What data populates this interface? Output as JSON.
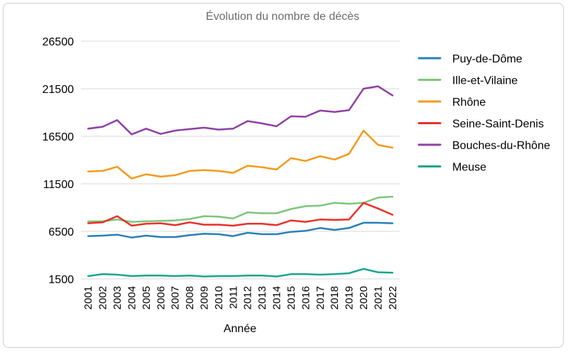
{
  "chart_data": {
    "type": "line",
    "title": "Évolution du nombre de décès",
    "xlabel": "Année",
    "ylabel": "",
    "ylim": [
      1500,
      26500
    ],
    "yticks": [
      "1500",
      "6500",
      "11500",
      "16500",
      "21500",
      "26500"
    ],
    "ytick_values": [
      1500,
      6500,
      11500,
      16500,
      21500,
      26500
    ],
    "grid": "horizontal",
    "legend_position": "right",
    "x": [
      "2001",
      "2002",
      "2003",
      "2004",
      "2005",
      "2006",
      "2007",
      "2008",
      "2009",
      "2010",
      "2011",
      "2012",
      "2013",
      "2014",
      "2015",
      "2016",
      "2017",
      "2018",
      "2019",
      "2020",
      "2021",
      "2022"
    ],
    "series": [
      {
        "name": "Puy-de-Dôme",
        "color": "#2a7fb8",
        "values": [
          6000,
          6050,
          6150,
          5850,
          6050,
          5900,
          5900,
          6100,
          6250,
          6200,
          6000,
          6350,
          6200,
          6200,
          6450,
          6550,
          6850,
          6650,
          6850,
          7400,
          7400,
          7350
        ]
      },
      {
        "name": "Ille-et-Vilaine",
        "color": "#7dc67a",
        "values": [
          7550,
          7550,
          7750,
          7500,
          7550,
          7600,
          7650,
          7800,
          8100,
          8050,
          7850,
          8500,
          8400,
          8400,
          8850,
          9150,
          9200,
          9500,
          9400,
          9500,
          10050,
          10150
        ]
      },
      {
        "name": "Rhône",
        "color": "#f39a1b",
        "values": [
          12800,
          12850,
          13300,
          12050,
          12500,
          12250,
          12400,
          12850,
          12950,
          12850,
          12650,
          13400,
          13250,
          13000,
          14200,
          13900,
          14400,
          14050,
          14650,
          17100,
          15600,
          15300
        ]
      },
      {
        "name": "Seine-Saint-Denis",
        "color": "#e8302a",
        "values": [
          7350,
          7450,
          8100,
          7100,
          7300,
          7350,
          7150,
          7450,
          7200,
          7200,
          7100,
          7300,
          7300,
          7150,
          7650,
          7500,
          7750,
          7700,
          7750,
          9500,
          8900,
          8250
        ]
      },
      {
        "name": "Bouches-du-Rhône",
        "color": "#8e3fa5",
        "values": [
          17300,
          17500,
          18200,
          16700,
          17300,
          16750,
          17100,
          17250,
          17400,
          17200,
          17300,
          18100,
          17850,
          17550,
          18600,
          18550,
          19200,
          19050,
          19250,
          21500,
          21750,
          20800
        ]
      },
      {
        "name": "Meuse",
        "color": "#1aa58a",
        "values": [
          1800,
          2000,
          1950,
          1800,
          1850,
          1850,
          1800,
          1850,
          1750,
          1800,
          1800,
          1850,
          1850,
          1750,
          2000,
          2000,
          1950,
          2000,
          2100,
          2550,
          2200,
          2150
        ]
      }
    ]
  }
}
